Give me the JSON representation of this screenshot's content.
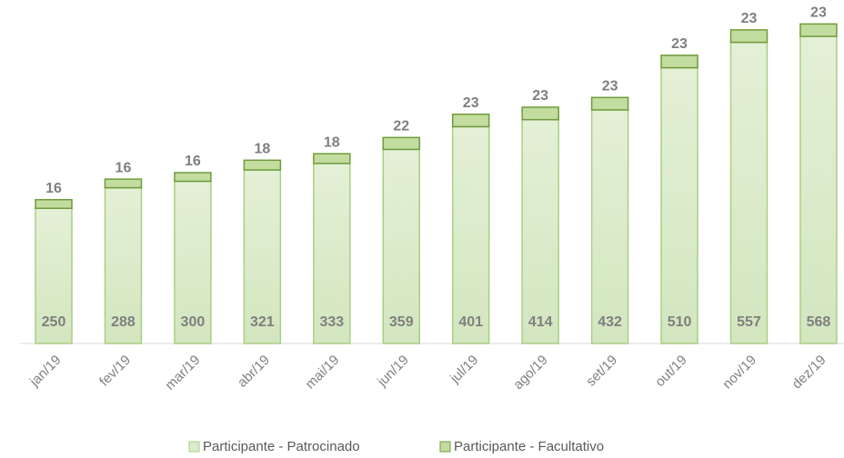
{
  "chart_data": {
    "type": "stacked_bar",
    "categories": [
      "jan/19",
      "fev/19",
      "mar/19",
      "abr/19",
      "mai/19",
      "jun/19",
      "jul/19",
      "ago/19",
      "set/19",
      "out/19",
      "nov/19",
      "dez/19"
    ],
    "series": [
      {
        "name": "Participante - Patrocinado",
        "color": "#dcebcb",
        "values": [
          250,
          288,
          300,
          321,
          333,
          359,
          401,
          414,
          432,
          510,
          557,
          568
        ]
      },
      {
        "name": "Participante - Facultativo",
        "color": "#c3dc9f",
        "values": [
          16,
          16,
          16,
          18,
          18,
          22,
          23,
          23,
          23,
          23,
          23,
          23
        ]
      }
    ],
    "legend": "bottom"
  }
}
